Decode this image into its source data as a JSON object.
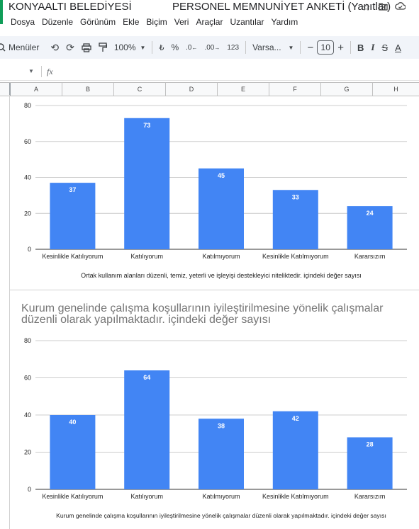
{
  "app": {
    "doc_title": "KONYAALTI BELEDİYESİ",
    "sheet_title": "PERSONEL MEMNUNİYET ANKETİ (Yanıtlar)",
    "title_icons": [
      "star-icon",
      "folder-move-icon",
      "cloud-status-icon"
    ]
  },
  "menu": [
    "Dosya",
    "Düzenle",
    "Görünüm",
    "Ekle",
    "Biçim",
    "Veri",
    "Araçlar",
    "Uzantılar",
    "Yardım"
  ],
  "toolbar": {
    "search_menus": "Menüler",
    "zoom": "100%",
    "percent": "%",
    "decrease_decimal": ".0",
    "increase_decimal": ".00",
    "number_format": "123",
    "font": "Varsa...",
    "font_size": "10",
    "minus": "−",
    "plus": "+",
    "bold": "B",
    "italic": "I",
    "strike": "S",
    "text_color": "A"
  },
  "formula_bar": {
    "fx": "fx"
  },
  "columns": [
    "A",
    "B",
    "C",
    "D",
    "E",
    "F",
    "G",
    "H"
  ],
  "colors": {
    "bar": "#4285f4",
    "accent_green": "#0f9d58"
  },
  "chart_data": [
    {
      "type": "bar",
      "title": "",
      "categories": [
        "Kesinlikle Katılıyorum",
        "Katılıyorum",
        "Katılmıyorum",
        "Kesinlikle Katılmıyorum",
        "Kararsızım"
      ],
      "values": [
        37,
        73,
        45,
        33,
        24
      ],
      "xlabel": "Ortak kullanım alanları düzenli, temiz, yeterli ve işleyişi destekleyici niteliktedir. içindeki değer sayısı",
      "ylabel": "",
      "ylim": [
        0,
        80
      ],
      "yticks": [
        0,
        20,
        40,
        60,
        80
      ],
      "grid": true,
      "data_labels": true
    },
    {
      "type": "bar",
      "title": "Kurum genelinde çalışma koşullarının iyileştirilmesine yönelik çalışmalar düzenli olarak yapılmaktadır. içindeki değer sayısı",
      "categories": [
        "Kesinlikle Katılıyorum",
        "Katılıyorum",
        "Katılmıyorum",
        "Kesinlikle Katılmıyorum",
        "Kararsızım"
      ],
      "values": [
        40,
        64,
        38,
        42,
        28
      ],
      "xlabel": "Kurum genelinde çalışma koşullarının iyileştirilmesine yönelik çalışmalar düzenli olarak yapılmaktadır. içindeki değer sayısı",
      "ylabel": "",
      "ylim": [
        0,
        80
      ],
      "yticks": [
        0,
        20,
        40,
        60,
        80
      ],
      "grid": true,
      "data_labels": true
    }
  ]
}
